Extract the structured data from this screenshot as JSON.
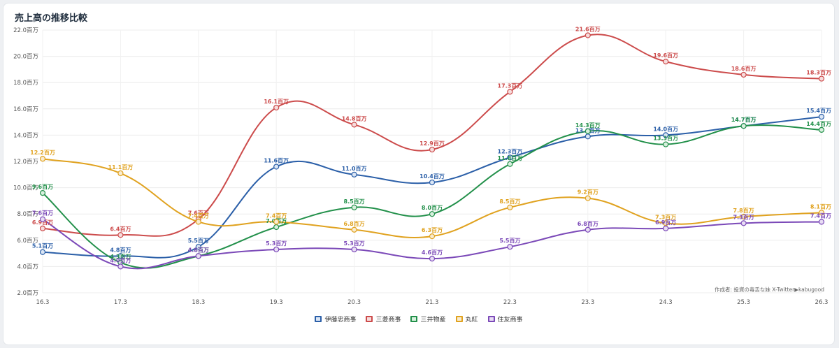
{
  "chart_data": {
    "type": "line",
    "title": "売上高の推移比較",
    "x": [
      "16.3",
      "17.3",
      "18.3",
      "19.3",
      "20.3",
      "21.3",
      "22.3",
      "23.3",
      "24.3",
      "25.3",
      "26.3"
    ],
    "y_ticks": [
      "2.0百万",
      "4.0百万",
      "6.0百万",
      "8.0百万",
      "10.0百万",
      "12.0百万",
      "14.0百万",
      "16.0百万",
      "18.0百万",
      "20.0百万",
      "22.0百万"
    ],
    "ylim": [
      2,
      22
    ],
    "grid": true,
    "legend_position": "bottom",
    "unit_suffix": "百万",
    "series": [
      {
        "name": "伊藤忠商事",
        "color": "#2b5fa8",
        "fill": "#dbe6f5",
        "values": [
          5.1,
          4.8,
          5.5,
          11.6,
          11.0,
          10.4,
          12.3,
          13.9,
          14.0,
          14.7,
          15.4
        ]
      },
      {
        "name": "三菱商事",
        "color": "#cc4b4b",
        "fill": "#f6dcdc",
        "values": [
          6.9,
          6.4,
          7.6,
          16.1,
          14.8,
          12.9,
          17.3,
          21.6,
          19.6,
          18.6,
          18.3
        ]
      },
      {
        "name": "三井物産",
        "color": "#22904a",
        "fill": "#d8f0de",
        "values": [
          9.6,
          4.3,
          4.8,
          7.0,
          8.5,
          8.0,
          11.8,
          14.3,
          13.3,
          14.7,
          14.4
        ]
      },
      {
        "name": "丸紅",
        "color": "#e0a21f",
        "fill": "#f9ecd0",
        "values": [
          12.2,
          11.1,
          7.4,
          7.4,
          6.8,
          6.3,
          8.5,
          9.2,
          7.3,
          7.8,
          8.1
        ]
      },
      {
        "name": "住友商事",
        "color": "#7b49b8",
        "fill": "#e8ddf4",
        "values": [
          7.6,
          4.0,
          4.8,
          5.3,
          5.3,
          4.6,
          5.5,
          6.8,
          6.9,
          7.3,
          7.4
        ]
      }
    ]
  },
  "credit": "作成者: 投資の毒舌な妹 X-Twitter▶kabugood"
}
